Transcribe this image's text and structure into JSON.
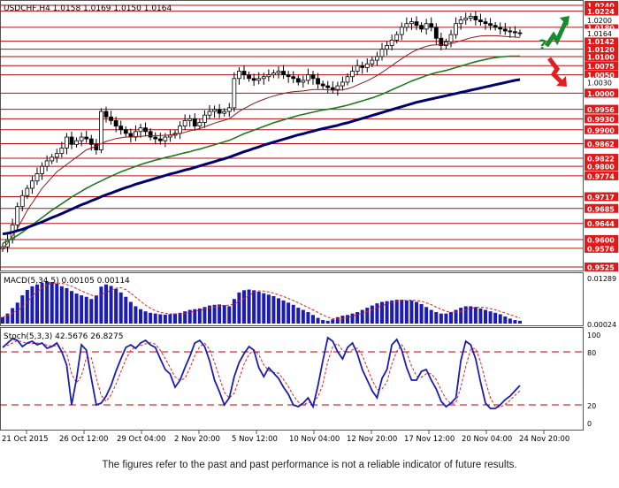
{
  "chart_data": [
    {
      "type": "line",
      "panel": "price",
      "title": "USDCHF,H4  1.0158 1.0169 1.0150 1.0164",
      "symbol": "USDCHF",
      "timeframe": "H4",
      "ohlc_header": {
        "open": 1.0158,
        "high": 1.0169,
        "low": 1.015,
        "close": 1.0164
      },
      "ylim": [
        0.9525,
        1.024
      ],
      "x_tick_labels": [
        "21 Oct 2015",
        "26 Oct 12:00",
        "29 Oct 04:00",
        "2 Nov 20:00",
        "5 Nov 12:00",
        "10 Nov 04:00",
        "12 Nov 20:00",
        "17 Nov 12:00",
        "20 Nov 04:00",
        "24 Nov 20:00"
      ],
      "y_tick_labels_plain": [
        "1.0200",
        "1.0164",
        "1.0030"
      ],
      "levels": [
        "1.0240",
        "1.0224",
        "1.0180",
        "1.0142",
        "1.0120",
        "1.0100",
        "1.0075",
        "1.0050",
        "1.0000",
        "0.9956",
        "0.9930",
        "0.9900",
        "0.9862",
        "0.9822",
        "0.9800",
        "0.9774",
        "0.9717",
        "0.9685",
        "0.9644",
        "0.9600",
        "0.9576",
        "0.9525"
      ],
      "close_series": [
        0.958,
        0.96,
        0.964,
        0.969,
        0.972,
        0.974,
        0.976,
        0.978,
        0.98,
        0.9815,
        0.9825,
        0.9835,
        0.985,
        0.988,
        0.986,
        0.987,
        0.988,
        0.9875,
        0.986,
        0.9845,
        0.995,
        0.9935,
        0.9925,
        0.991,
        0.99,
        0.989,
        0.988,
        0.9895,
        0.9905,
        0.9895,
        0.988,
        0.9875,
        0.987,
        0.988,
        0.9885,
        0.989,
        0.991,
        0.9925,
        0.993,
        0.991,
        0.992,
        0.994,
        0.995,
        0.9955,
        0.9945,
        0.995,
        0.996,
        1.004,
        1.006,
        1.005,
        1.004,
        1.0035,
        1.004,
        1.0045,
        1.005,
        1.0055,
        1.006,
        1.005,
        1.0045,
        1.004,
        1.003,
        1.0035,
        1.005,
        1.004,
        1.0025,
        1.002,
        1.0015,
        1.001,
        1.002,
        1.003,
        1.0045,
        1.006,
        1.0075,
        1.007,
        1.008,
        1.009,
        1.01,
        1.012,
        1.013,
        1.0145,
        1.016,
        1.018,
        1.019,
        1.0195,
        1.0185,
        1.0175,
        1.019,
        1.018,
        1.015,
        1.013,
        1.014,
        1.016,
        1.019,
        1.02,
        1.0205,
        1.021,
        1.02,
        1.0195,
        1.019,
        1.0185,
        1.018,
        1.0175,
        1.017,
        1.0168,
        1.0165,
        1.0164
      ],
      "series": [
        {
          "name": "",
          "color": "#8b1a1a",
          "values": [
            0.9575,
            0.959,
            0.961,
            0.963,
            0.9655,
            0.968,
            0.97,
            0.972,
            0.974,
            0.9755,
            0.977,
            0.9785,
            0.9795,
            0.9805,
            0.9815,
            0.9825,
            0.9835,
            0.9845,
            0.985,
            0.9855,
            0.9862,
            0.9868,
            0.9872,
            0.9876,
            0.9878,
            0.988,
            0.988,
            0.9881,
            0.9882,
            0.9883,
            0.9884,
            0.9884,
            0.9884,
            0.9885,
            0.9886,
            0.9888,
            0.989,
            0.9893,
            0.9897,
            0.99,
            0.9903,
            0.9908,
            0.9913,
            0.9918,
            0.9922,
            0.9926,
            0.993,
            0.994,
            0.995,
            0.9958,
            0.9965,
            0.9972,
            0.9978,
            0.9983,
            0.9988,
            0.9992,
            0.9996,
            0.9999,
            1.0002,
            1.0004,
            1.0005,
            1.0006,
            1.0008,
            1.001,
            1.001,
            1.001,
            1.0009,
            1.0008,
            1.0008,
            1.0009,
            1.0012,
            1.0016,
            1.0022,
            1.0028,
            1.0034,
            1.0041,
            1.0048,
            1.0057,
            1.0066,
            1.0075,
            1.0085,
            1.0094,
            1.0103,
            1.0111,
            1.0118,
            1.0123,
            1.0128,
            1.0131,
            1.0132,
            1.0132,
            1.0133,
            1.0135,
            1.0139,
            1.0143,
            1.0147,
            1.0151,
            1.0154,
            1.0156,
            1.0157,
            1.0157,
            1.0157,
            1.0156,
            1.0155,
            1.0154,
            1.0153,
            1.0152
          ]
        },
        {
          "name": "",
          "color": "#1e7a1e",
          "values": [
            0.959,
            0.9596,
            0.9603,
            0.9611,
            0.962,
            0.963,
            0.964,
            0.965,
            0.966,
            0.967,
            0.968,
            0.9689,
            0.9698,
            0.9707,
            0.9716,
            0.9724,
            0.9732,
            0.974,
            0.9747,
            0.9754,
            0.976,
            0.9767,
            0.9773,
            0.9779,
            0.9785,
            0.979,
            0.9795,
            0.98,
            0.9805,
            0.9809,
            0.9813,
            0.9817,
            0.982,
            0.9824,
            0.9827,
            0.983,
            0.9834,
            0.9837,
            0.984,
            0.9844,
            0.9847,
            0.9851,
            0.9855,
            0.9859,
            0.9863,
            0.9867,
            0.9871,
            0.9877,
            0.9883,
            0.9889,
            0.9894,
            0.9899,
            0.9904,
            0.9909,
            0.9914,
            0.9919,
            0.9923,
            0.9927,
            0.9931,
            0.9935,
            0.9939,
            0.9942,
            0.9945,
            0.9948,
            0.9951,
            0.9954,
            0.9956,
            0.9958,
            0.9961,
            0.9964,
            0.9967,
            0.9971,
            0.9975,
            0.9979,
            0.9983,
            0.9987,
            0.9992,
            0.9997,
            1.0003,
            1.0009,
            1.0015,
            1.0021,
            1.0027,
            1.0033,
            1.0038,
            1.0043,
            1.0048,
            1.0052,
            1.0056,
            1.0059,
            1.0062,
            1.0066,
            1.007,
            1.0074,
            1.0078,
            1.0082,
            1.0086,
            1.0089,
            1.0092,
            1.0095,
            1.0097,
            1.0099,
            1.01,
            1.0101,
            1.0101,
            1.0101
          ]
        },
        {
          "name": "",
          "color": "#00006e",
          "values": [
            0.9615,
            0.9617,
            0.962,
            0.9624,
            0.9628,
            0.9633,
            0.9638,
            0.9643,
            0.9648,
            0.9654,
            0.966,
            0.9665,
            0.9671,
            0.9677,
            0.9683,
            0.9689,
            0.9695,
            0.97,
            0.9706,
            0.9711,
            0.9717,
            0.9722,
            0.9727,
            0.9732,
            0.9737,
            0.9742,
            0.9746,
            0.9751,
            0.9755,
            0.9759,
            0.9763,
            0.9767,
            0.9771,
            0.9775,
            0.9779,
            0.9782,
            0.9786,
            0.979,
            0.9793,
            0.9797,
            0.9801,
            0.9805,
            0.9809,
            0.9813,
            0.9817,
            0.9821,
            0.9825,
            0.983,
            0.9835,
            0.984,
            0.9844,
            0.9849,
            0.9853,
            0.9858,
            0.9862,
            0.9866,
            0.987,
            0.9874,
            0.9878,
            0.9882,
            0.9886,
            0.9889,
            0.9893,
            0.9896,
            0.99,
            0.9903,
            0.9906,
            0.9909,
            0.9912,
            0.9916,
            0.9919,
            0.9923,
            0.9927,
            0.9931,
            0.9935,
            0.9939,
            0.9943,
            0.9947,
            0.9951,
            0.9955,
            0.9959,
            0.9963,
            0.9967,
            0.9971,
            0.9975,
            0.9978,
            0.9981,
            0.9984,
            0.9987,
            0.999,
            0.9993,
            0.9996,
            0.9999,
            1.0002,
            1.0005,
            1.0008,
            1.0011,
            1.0014,
            1.0017,
            1.002,
            1.0023,
            1.0026,
            1.0029,
            1.0032,
            1.0035,
            1.0037
          ]
        }
      ],
      "annotations": {
        "up_arrow_color": "#1a8a2e",
        "down_arrow_color": "#e02020",
        "question_mark": "?"
      }
    },
    {
      "type": "bar",
      "panel": "macd",
      "title": "MACD(5,34,5) 0.00105 0.00114",
      "ylim": [
        0.00024,
        0.01289
      ],
      "y_tick_labels": [
        "0.01289",
        "0.00024"
      ],
      "bar_color": "#1c1cb4",
      "signal_color": "#e02020",
      "values": [
        0.002,
        0.003,
        0.0045,
        0.006,
        0.008,
        0.0095,
        0.0105,
        0.011,
        0.0115,
        0.0118,
        0.0116,
        0.0112,
        0.0105,
        0.01,
        0.0092,
        0.0085,
        0.008,
        0.0076,
        0.007,
        0.008,
        0.0104,
        0.011,
        0.0106,
        0.0098,
        0.0088,
        0.0076,
        0.0062,
        0.005,
        0.0042,
        0.0036,
        0.0032,
        0.003,
        0.0028,
        0.0027,
        0.0028,
        0.003,
        0.0032,
        0.0036,
        0.004,
        0.0042,
        0.0044,
        0.0048,
        0.0052,
        0.0054,
        0.0055,
        0.0053,
        0.005,
        0.007,
        0.0088,
        0.0094,
        0.0096,
        0.0094,
        0.009,
        0.0086,
        0.0082,
        0.0078,
        0.0072,
        0.0066,
        0.006,
        0.0054,
        0.0046,
        0.004,
        0.0034,
        0.0026,
        0.0018,
        0.0012,
        0.001,
        0.0014,
        0.002,
        0.0024,
        0.0026,
        0.003,
        0.0034,
        0.004,
        0.0046,
        0.0052,
        0.0058,
        0.0062,
        0.0064,
        0.0066,
        0.0068,
        0.0068,
        0.0066,
        0.0066,
        0.0062,
        0.0056,
        0.0048,
        0.004,
        0.0034,
        0.003,
        0.003,
        0.0034,
        0.004,
        0.0046,
        0.005,
        0.005,
        0.0048,
        0.0044,
        0.004,
        0.0036,
        0.0032,
        0.0028,
        0.0022,
        0.0016,
        0.0012,
        0.001
      ]
    },
    {
      "type": "line",
      "panel": "stochastic",
      "title": "Stoch(5,3,3) 42.5676 26.8275",
      "ylim": [
        0,
        100
      ],
      "y_tick_labels": [
        "100",
        "80",
        "20",
        "0"
      ],
      "levels": [
        80,
        20
      ],
      "main_color": "#1c1cb4",
      "signal_color": "#e02020",
      "level_color": "#c00000",
      "values": [
        85,
        90,
        95,
        93,
        86,
        90,
        92,
        88,
        90,
        84,
        86,
        90,
        80,
        65,
        20,
        50,
        88,
        82,
        50,
        20,
        22,
        30,
        42,
        58,
        72,
        85,
        88,
        84,
        90,
        93,
        88,
        85,
        72,
        60,
        55,
        40,
        48,
        62,
        75,
        90,
        93,
        86,
        70,
        48,
        35,
        20,
        28,
        52,
        68,
        78,
        86,
        82,
        62,
        52,
        62,
        56,
        50,
        40,
        32,
        20,
        18,
        22,
        28,
        18,
        42,
        70,
        96,
        92,
        80,
        72,
        85,
        90,
        78,
        60,
        48,
        36,
        28,
        50,
        60,
        88,
        94,
        82,
        62,
        48,
        48,
        58,
        60,
        48,
        38,
        24,
        18,
        22,
        28,
        70,
        92,
        88,
        72,
        46,
        22,
        16,
        16,
        20,
        26,
        30,
        36,
        42
      ]
    }
  ],
  "footer": {
    "disclaimer": "The figures refer to the past and past performance is not a reliable indicator of future results."
  }
}
